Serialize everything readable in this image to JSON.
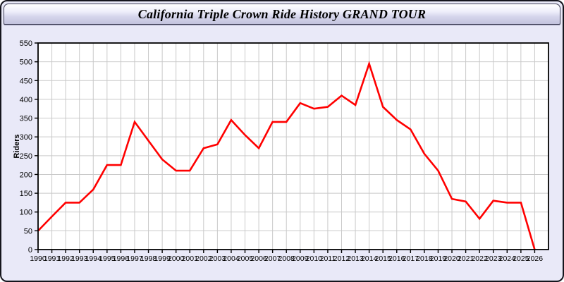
{
  "window": {
    "title": "California Triple Crown Ride History GRAND TOUR"
  },
  "chart_data": {
    "type": "line",
    "title": "California Triple Crown Ride History GRAND TOUR",
    "xlabel": "",
    "ylabel": "Riders",
    "x": [
      1990,
      1991,
      1992,
      1993,
      1994,
      1995,
      1996,
      1997,
      1998,
      1999,
      2000,
      2001,
      2002,
      2003,
      2004,
      2005,
      2006,
      2007,
      2008,
      2009,
      2010,
      2011,
      2012,
      2013,
      2014,
      2015,
      2016,
      2017,
      2018,
      2019,
      2020,
      2021,
      2022,
      2023,
      2024,
      2025,
      2026
    ],
    "series": [
      {
        "name": "Riders",
        "color": "#ff0000",
        "values": [
          50,
          88,
          125,
          125,
          160,
          225,
          225,
          340,
          290,
          240,
          210,
          210,
          270,
          280,
          345,
          305,
          270,
          340,
          340,
          390,
          375,
          380,
          410,
          385,
          495,
          380,
          345,
          320,
          255,
          210,
          135,
          128,
          82,
          130,
          125,
          125,
          0
        ]
      }
    ],
    "ylim": [
      0,
      550
    ],
    "xlim": [
      1990,
      2027
    ],
    "ytick_step": 50,
    "grid": true,
    "legend_position": "none"
  },
  "colors": {
    "line": "#ff0000",
    "plot_bg": "#ffffff",
    "grid": "#c9c9c9",
    "frame": "#000000",
    "window_bg": "#e9e9f8",
    "titlebar_border": "#3c3c52"
  }
}
